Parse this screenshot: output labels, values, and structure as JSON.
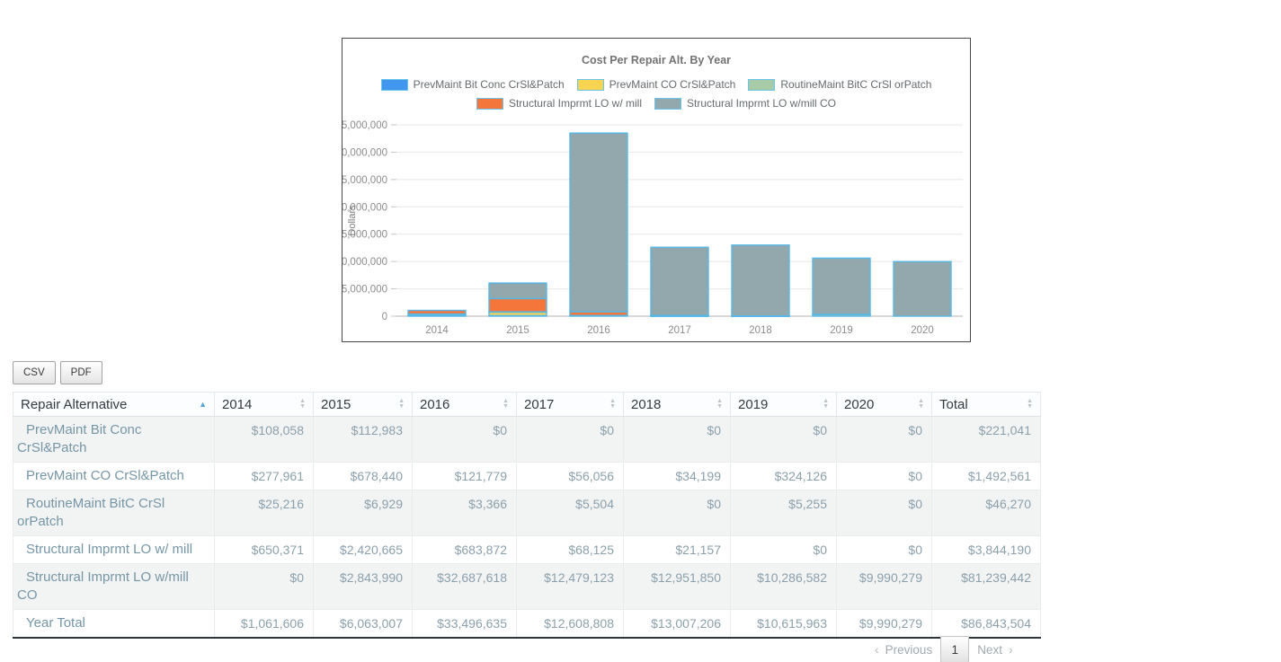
{
  "chart": {
    "title": "Cost Per Repair Alt. By Year",
    "ylabel": "Dollars"
  },
  "chart_data": {
    "type": "bar",
    "stacked": true,
    "title": "Cost Per Repair Alt. By Year",
    "xlabel": "",
    "ylabel": "Dollars",
    "ylim": [
      0,
      35000000
    ],
    "ytick_step": 5000000,
    "grid": true,
    "legend_position": "top",
    "categories": [
      "2014",
      "2015",
      "2016",
      "2017",
      "2018",
      "2019",
      "2020"
    ],
    "series": [
      {
        "name": "PrevMaint Bit Conc CrSl&Patch",
        "color": "#4196ee",
        "values": [
          108058,
          112983,
          0,
          0,
          0,
          0,
          0
        ]
      },
      {
        "name": "PrevMaint CO CrSl&Patch",
        "color": "#f8d450",
        "values": [
          277961,
          678440,
          121779,
          56056,
          34199,
          324126,
          0
        ]
      },
      {
        "name": "RoutineMaint BitC CrSl orPatch",
        "color": "#a6cba6",
        "values": [
          25216,
          6929,
          3366,
          5504,
          0,
          5255,
          0
        ]
      },
      {
        "name": "Structural Imprmt LO w/ mill",
        "color": "#f5763a",
        "values": [
          650371,
          2420665,
          683872,
          68125,
          21157,
          0,
          0
        ]
      },
      {
        "name": "Structural Imprmt LO w/mill CO",
        "color": "#92a8ad",
        "values": [
          0,
          2843990,
          32687618,
          12479123,
          12951850,
          10286582,
          9990279
        ]
      }
    ],
    "segment_stroke_color": "#55b8e8"
  },
  "toolbar": {
    "csv_label": "CSV",
    "pdf_label": "PDF"
  },
  "table": {
    "columns": [
      "Repair Alternative",
      "2014",
      "2015",
      "2016",
      "2017",
      "2018",
      "2019",
      "2020",
      "Total"
    ],
    "sort": {
      "column": "Repair Alternative",
      "direction": "ascending"
    },
    "rows": [
      {
        "label": "PrevMaint Bit Conc CrSl&Patch",
        "values": [
          "$108,058",
          "$112,983",
          "$0",
          "$0",
          "$0",
          "$0",
          "$0",
          "$221,041"
        ]
      },
      {
        "label": "PrevMaint CO CrSl&Patch",
        "values": [
          "$277,961",
          "$678,440",
          "$121,779",
          "$56,056",
          "$34,199",
          "$324,126",
          "$0",
          "$1,492,561"
        ]
      },
      {
        "label": "RoutineMaint BitC CrSl orPatch",
        "values": [
          "$25,216",
          "$6,929",
          "$3,366",
          "$5,504",
          "$0",
          "$5,255",
          "$0",
          "$46,270"
        ]
      },
      {
        "label": "Structural Imprmt LO w/ mill",
        "values": [
          "$650,371",
          "$2,420,665",
          "$683,872",
          "$68,125",
          "$21,157",
          "$0",
          "$0",
          "$3,844,190"
        ]
      },
      {
        "label": "Structural Imprmt LO w/mill CO",
        "values": [
          "$0",
          "$2,843,990",
          "$32,687,618",
          "$12,479,123",
          "$12,951,850",
          "$10,286,582",
          "$9,990,279",
          "$81,239,442"
        ]
      },
      {
        "label": "Year Total",
        "values": [
          "$1,061,606",
          "$6,063,007",
          "$33,496,635",
          "$12,608,808",
          "$13,007,206",
          "$10,615,963",
          "$9,990,279",
          "$86,843,504"
        ]
      }
    ]
  },
  "pagination": {
    "previous_label": "Previous",
    "previous_icon": "‹",
    "page": "1",
    "next_label": "Next",
    "next_icon": "›"
  }
}
